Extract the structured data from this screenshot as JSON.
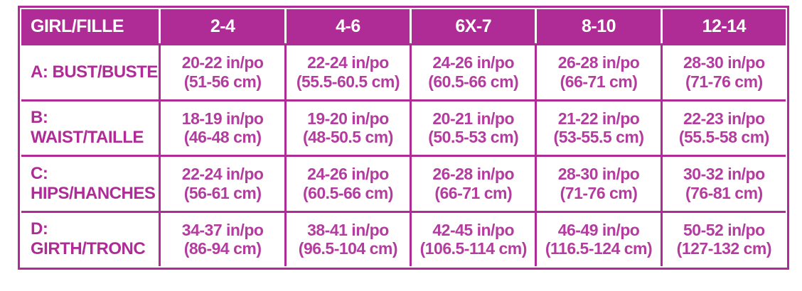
{
  "colors": {
    "magenta": "#AF2B95",
    "text_magenta": "#B33C9E",
    "header_text": "#FFFFFF"
  },
  "chart_data": {
    "type": "table",
    "columns": [
      "GIRL/FILLE",
      "2-4",
      "4-6",
      "6X-7",
      "8-10",
      "12-14"
    ],
    "rows": [
      {
        "label": "A: BUST/BUSTE",
        "cells": [
          {
            "in": "20-22 in/po",
            "cm": "(51-56 cm)"
          },
          {
            "in": "22-24 in/po",
            "cm": "(55.5-60.5 cm)"
          },
          {
            "in": "24-26 in/po",
            "cm": "(60.5-66 cm)"
          },
          {
            "in": "26-28 in/po",
            "cm": "(66-71 cm)"
          },
          {
            "in": "28-30 in/po",
            "cm": "(71-76 cm)"
          }
        ]
      },
      {
        "label": "B: WAIST/TAILLE",
        "cells": [
          {
            "in": "18-19 in/po",
            "cm": "(46-48 cm)"
          },
          {
            "in": "19-20 in/po",
            "cm": "(48-50.5 cm)"
          },
          {
            "in": "20-21 in/po",
            "cm": "(50.5-53 cm)"
          },
          {
            "in": "21-22 in/po",
            "cm": "(53-55.5 cm)"
          },
          {
            "in": "22-23 in/po",
            "cm": "(55.5-58 cm)"
          }
        ]
      },
      {
        "label": "C: HIPS/HANCHES",
        "cells": [
          {
            "in": "22-24 in/po",
            "cm": "(56-61 cm)"
          },
          {
            "in": "24-26 in/po",
            "cm": "(60.5-66 cm)"
          },
          {
            "in": "26-28 in/po",
            "cm": "(66-71 cm)"
          },
          {
            "in": "28-30 in/po",
            "cm": "(71-76 cm)"
          },
          {
            "in": "30-32 in/po",
            "cm": "(76-81 cm)"
          }
        ]
      },
      {
        "label": "D: GIRTH/TRONC",
        "cells": [
          {
            "in": "34-37 in/po",
            "cm": "(86-94 cm)"
          },
          {
            "in": "38-41 in/po",
            "cm": "(96.5-104 cm)"
          },
          {
            "in": "42-45 in/po",
            "cm": "(106.5-114 cm)"
          },
          {
            "in": "46-49 in/po",
            "cm": "(116.5-124 cm)"
          },
          {
            "in": "50-52 in/po",
            "cm": "(127-132 cm)"
          }
        ]
      }
    ]
  }
}
